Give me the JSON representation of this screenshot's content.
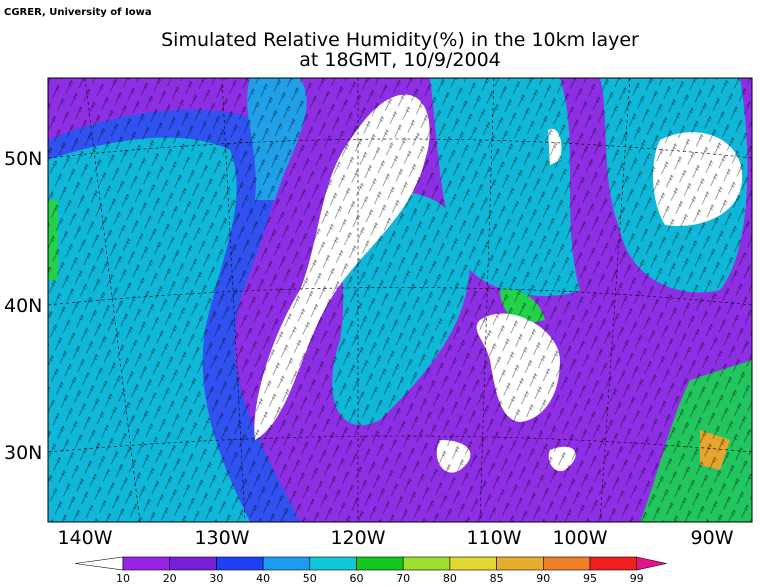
{
  "header": {
    "credit": "CGRER, University of Iowa",
    "title": [
      "Simulated Relative Humidity(%) in the 10km layer",
      "at 18GMT, 10/9/2004"
    ]
  },
  "map": {
    "lat_labels": [
      "50N",
      "40N",
      "30N"
    ],
    "lon_labels": [
      "140W",
      "130W",
      "120W",
      "110W",
      "100W",
      "90W"
    ]
  },
  "colorbar": {
    "labels": [
      10,
      20,
      30,
      40,
      50,
      60,
      70,
      80,
      85,
      90,
      95,
      99
    ],
    "colors": [
      "#ffffff",
      "#9a22e8",
      "#7820d8",
      "#2040f8",
      "#1a9cf0",
      "#10c8d8",
      "#10c820",
      "#9ee030",
      "#e0d830",
      "#e6ae2c",
      "#f08028",
      "#f02020",
      "#e8108c"
    ]
  }
}
